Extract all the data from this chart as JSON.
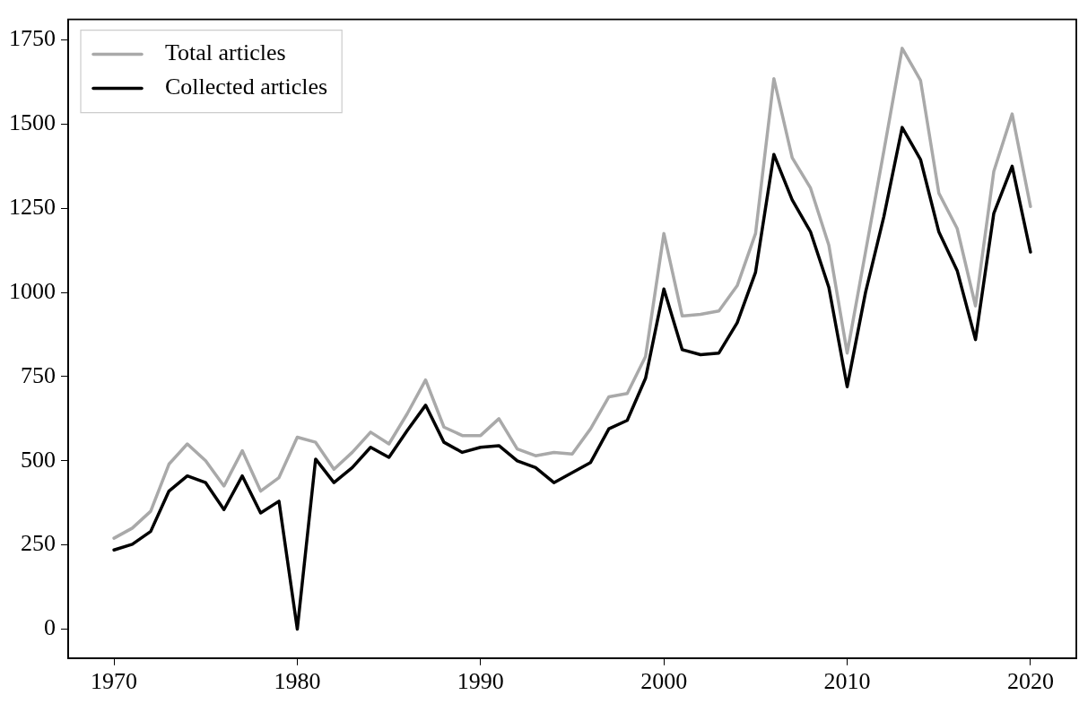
{
  "chart_data": {
    "type": "line",
    "x": [
      1970,
      1971,
      1972,
      1973,
      1974,
      1975,
      1976,
      1977,
      1978,
      1979,
      1980,
      1981,
      1982,
      1983,
      1984,
      1985,
      1986,
      1987,
      1988,
      1989,
      1990,
      1991,
      1992,
      1993,
      1994,
      1995,
      1996,
      1997,
      1998,
      1999,
      2000,
      2001,
      2002,
      2003,
      2004,
      2005,
      2006,
      2007,
      2008,
      2009,
      2010,
      2011,
      2012,
      2013,
      2014,
      2015,
      2016,
      2017,
      2018,
      2019,
      2020
    ],
    "series": [
      {
        "name": "Total articles",
        "color": "#a9a9a9",
        "values": [
          270,
          300,
          350,
          490,
          550,
          500,
          425,
          530,
          410,
          450,
          570,
          555,
          475,
          525,
          585,
          550,
          640,
          740,
          600,
          575,
          575,
          625,
          535,
          515,
          525,
          520,
          595,
          690,
          700,
          810,
          1175,
          930,
          935,
          945,
          1020,
          1175,
          1635,
          1400,
          1310,
          1140,
          820,
          1120,
          1420,
          1725,
          1630,
          1295,
          1190,
          960,
          1360,
          1530,
          1255
        ]
      },
      {
        "name": "Collected articles",
        "color": "#000000",
        "values": [
          235,
          252,
          290,
          410,
          455,
          435,
          355,
          455,
          345,
          380,
          0,
          505,
          435,
          480,
          540,
          510,
          590,
          665,
          555,
          525,
          540,
          545,
          500,
          480,
          435,
          465,
          495,
          595,
          620,
          745,
          1010,
          830,
          815,
          820,
          910,
          1060,
          1410,
          1275,
          1180,
          1015,
          720,
          1000,
          1225,
          1490,
          1395,
          1180,
          1065,
          860,
          1235,
          1375,
          1120
        ]
      }
    ],
    "xlim": [
      1967.5,
      2022.5
    ],
    "xticks": [
      1970,
      1980,
      1990,
      2000,
      2010,
      2020
    ],
    "ylim": [
      -86,
      1811
    ],
    "yticks": [
      0,
      250,
      500,
      750,
      1000,
      1250,
      1500,
      1750
    ],
    "legend": "top left",
    "grid": false,
    "marker": "none",
    "line_style": "solid"
  }
}
